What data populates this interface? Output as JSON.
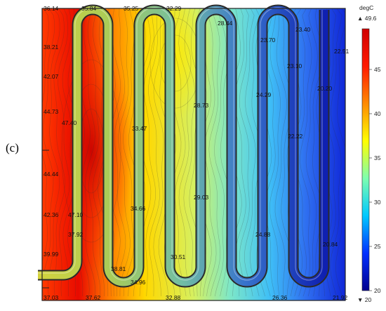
{
  "panel_label": "(c)",
  "colorbar": {
    "unit": "degC",
    "max_label": "▲ 49.6",
    "min_label": "▼ 20",
    "ticks": [
      "45",
      "40",
      "35",
      "30",
      "25",
      "20"
    ],
    "tick_values": [
      45,
      40,
      35,
      30,
      25,
      20
    ],
    "vmin": 20,
    "vmax": 49.6,
    "colors": [
      "#00008f",
      "#0030ff",
      "#00c8ff",
      "#7dffb0",
      "#ffff00",
      "#ff8a00",
      "#ff1a00",
      "#d00000"
    ]
  },
  "labels": {
    "top_0": "36.14",
    "top_1": "35.84",
    "top_2": "35.25",
    "top_3": "32.29",
    "top_4": "28.44",
    "top_5": "23.70",
    "top_6": "23.40",
    "top_7": "22.51",
    "left_0": "38.21",
    "left_1": "42.07",
    "left_2": "44.73",
    "left_3": "44.44",
    "left_4": "42.36",
    "left_5": "39.99",
    "in_0": "47.40",
    "in_1": "33.47",
    "in_2": "28.73",
    "in_3": "24.29",
    "in_4": "23.10",
    "in_5": "20.20",
    "in_6": "22.22",
    "in_7": "29.03",
    "in_8": "47.10",
    "in_9": "34.66",
    "in_10": "37.92",
    "in_11": "24.88",
    "in_12": "20.84",
    "in_13": "30.51",
    "in_14": "38.81",
    "in_15": "34.96",
    "bot_0": "37.03",
    "bot_1": "37.62",
    "bot_2": "32.88",
    "bot_3": "26.36",
    "bot_4": "21.92"
  }
}
